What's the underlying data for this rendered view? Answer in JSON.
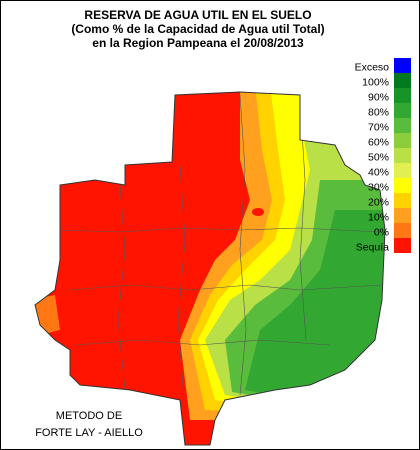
{
  "title": {
    "lines": [
      "RESERVA DE AGUA UTIL EN EL SUELO",
      "(Como % de la Capacidad de Agua util Total)",
      "en la Region Pampeana el 20/08/2013"
    ]
  },
  "legend": {
    "items": [
      {
        "label": "Exceso",
        "color": "#0000ff"
      },
      {
        "label": "100%",
        "color": "#007a1e"
      },
      {
        "label": "90%",
        "color": "#169428"
      },
      {
        "label": "80%",
        "color": "#32a832"
      },
      {
        "label": "70%",
        "color": "#5abc3c"
      },
      {
        "label": "60%",
        "color": "#8ccd3c"
      },
      {
        "label": "50%",
        "color": "#b9e046"
      },
      {
        "label": "40%",
        "color": "#e1f050"
      },
      {
        "label": "30%",
        "color": "#ffff00"
      },
      {
        "label": "20%",
        "color": "#ffd200"
      },
      {
        "label": "10%",
        "color": "#ffa01e"
      },
      {
        "label": "0%",
        "color": "#ff7814"
      },
      {
        "label": "Sequía",
        "color": "#ff1400"
      }
    ]
  },
  "footer": {
    "lines": [
      "METODO DE",
      "FORTE LAY - AIELLO"
    ]
  }
}
